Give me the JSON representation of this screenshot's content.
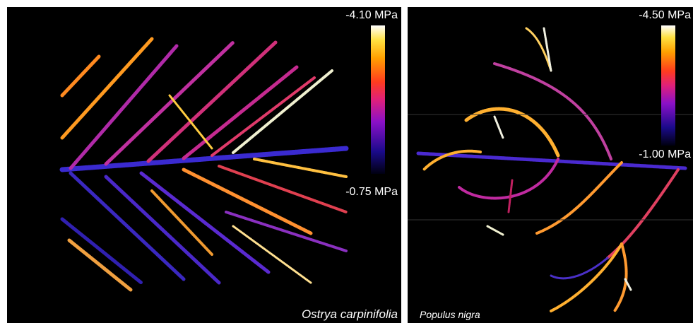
{
  "panels": [
    {
      "species": "Ostrya carpinifolia",
      "colorbar": {
        "top_label": "-4.10 MPa",
        "bottom_label": "-0.75 MPa"
      }
    },
    {
      "species": "Populus nigra",
      "colorbar": {
        "top_label": "-4.50 MPa",
        "bottom_label": "-1.00 MPa"
      }
    }
  ]
}
